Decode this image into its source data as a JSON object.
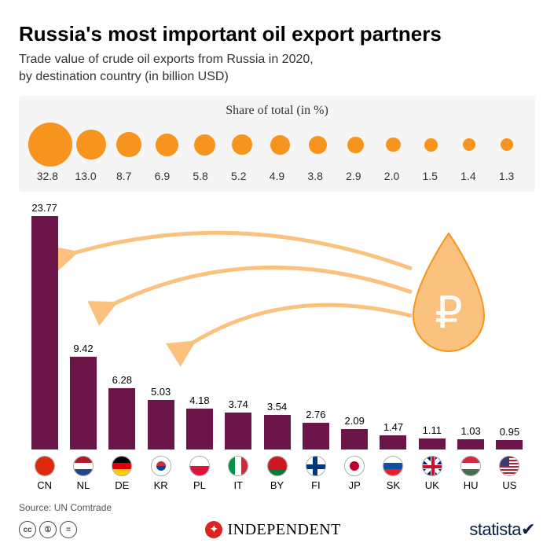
{
  "title": "Russia's most important oil export partners",
  "subtitle": "Trade value of crude oil exports from Russia in 2020,\nby destination country (in billion USD)",
  "share_title": "Share of total (in %)",
  "source": "Source: UN Comtrade",
  "bubble_color": "#f7941d",
  "bar_color": "#6b1548",
  "chart_bg": "#f5f5f5",
  "drop_fill": "#fbc27f",
  "drop_stroke": "#f7941d",
  "arrow_color": "#fbc27f",
  "max_value": 24,
  "max_bubble": 56,
  "min_bubble": 6,
  "countries": [
    {
      "code": "CN",
      "value": 23.77,
      "share": 32.8,
      "flag": {
        "type": "solid",
        "c1": "#de2910"
      }
    },
    {
      "code": "NL",
      "value": 9.42,
      "share": 13.0,
      "flag": {
        "type": "h3",
        "c1": "#ae1c28",
        "c2": "#fff",
        "c3": "#21468b"
      }
    },
    {
      "code": "DE",
      "value": 6.28,
      "share": 8.7,
      "flag": {
        "type": "h3",
        "c1": "#000",
        "c2": "#dd0000",
        "c3": "#ffce00"
      }
    },
    {
      "code": "KR",
      "value": 5.03,
      "share": 6.9,
      "flag": {
        "type": "kr"
      }
    },
    {
      "code": "PL",
      "value": 4.18,
      "share": 5.8,
      "flag": {
        "type": "h2",
        "c1": "#fff",
        "c2": "#dc143c"
      }
    },
    {
      "code": "IT",
      "value": 3.74,
      "share": 5.2,
      "flag": {
        "type": "v3",
        "c1": "#009246",
        "c2": "#fff",
        "c3": "#ce2b37"
      }
    },
    {
      "code": "BY",
      "value": 3.54,
      "share": 4.9,
      "flag": {
        "type": "by"
      }
    },
    {
      "code": "FI",
      "value": 2.76,
      "share": 3.8,
      "flag": {
        "type": "fi"
      }
    },
    {
      "code": "JP",
      "value": 2.09,
      "share": 2.9,
      "flag": {
        "type": "jp"
      }
    },
    {
      "code": "SK",
      "value": 1.47,
      "share": 2.0,
      "flag": {
        "type": "h3",
        "c1": "#fff",
        "c2": "#0b4ea2",
        "c3": "#ee1c25"
      }
    },
    {
      "code": "UK",
      "value": 1.11,
      "share": 1.5,
      "flag": {
        "type": "uk"
      }
    },
    {
      "code": "HU",
      "value": 1.03,
      "share": 1.4,
      "flag": {
        "type": "h3",
        "c1": "#cd2a3e",
        "c2": "#fff",
        "c3": "#436f4d"
      }
    },
    {
      "code": "US",
      "value": 0.95,
      "share": 1.3,
      "flag": {
        "type": "us"
      }
    }
  ],
  "logos": {
    "independent": "INDEPENDENT",
    "statista": "statista"
  }
}
